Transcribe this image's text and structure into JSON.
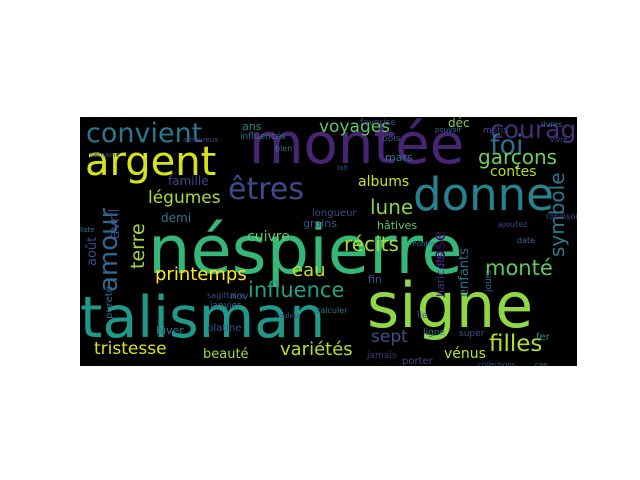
{
  "word_cloud": {
    "background": "#000000",
    "words": [
      {
        "text": "néspierre",
        "color": "#35b778"
      },
      {
        "text": "talisman",
        "color": "#1f9a8a"
      },
      {
        "text": "signe",
        "color": "#8fd744"
      },
      {
        "text": "montée",
        "color": "#482475"
      },
      {
        "text": "argent",
        "color": "#d8e219"
      },
      {
        "text": "donne",
        "color": "#26828e"
      },
      {
        "text": "amour",
        "color": "#31688e"
      },
      {
        "text": "êtres",
        "color": "#3e4a89"
      },
      {
        "text": "convient",
        "color": "#2a788e"
      },
      {
        "text": "courage",
        "color": "#472d7b"
      },
      {
        "text": "foi",
        "color": "#2c718e"
      },
      {
        "text": "garçons",
        "color": "#6ece58"
      },
      {
        "text": "voyages",
        "color": "#5ec962"
      },
      {
        "text": "symbole",
        "color": "#2a788e"
      },
      {
        "text": "légumes",
        "color": "#addc30"
      },
      {
        "text": "lune",
        "color": "#86d549"
      },
      {
        "text": "monté",
        "color": "#5ec962"
      },
      {
        "text": "récits",
        "color": "#addc30"
      },
      {
        "text": "printemps",
        "color": "#fde725"
      },
      {
        "text": "influence",
        "color": "#20a386"
      },
      {
        "text": "eau",
        "color": "#c2df23"
      },
      {
        "text": "filles",
        "color": "#b5de2b"
      },
      {
        "text": "tristesse",
        "color": "#d8e219"
      },
      {
        "text": "variétés",
        "color": "#b5de2b"
      },
      {
        "text": "vénus",
        "color": "#c2df23"
      },
      {
        "text": "sept",
        "color": "#3b528b"
      },
      {
        "text": "terre",
        "color": "#a0da39"
      },
      {
        "text": "albums",
        "color": "#cae11f"
      },
      {
        "text": "contes",
        "color": "#b5de2b"
      },
      {
        "text": "rose",
        "color": "#44015f"
      },
      {
        "text": "beauté",
        "color": "#a0da39"
      },
      {
        "text": "cuivre",
        "color": "#5ec962"
      },
      {
        "text": "famille",
        "color": "#404588"
      },
      {
        "text": "avril",
        "color": "#404688"
      },
      {
        "text": "août",
        "color": "#3e4989"
      },
      {
        "text": "demi",
        "color": "#2a788e"
      },
      {
        "text": "ans",
        "color": "#228c8d"
      },
      {
        "text": "déc",
        "color": "#7ad151"
      },
      {
        "text": "enfants",
        "color": "#2c718e"
      },
      {
        "text": "hâtives",
        "color": "#5ec962"
      },
      {
        "text": "grains",
        "color": "#3b528b"
      },
      {
        "text": "fin",
        "color": "#3b528b"
      },
      {
        "text": "mars",
        "color": "#2a788e"
      },
      {
        "text": "hiver",
        "color": "#2c718e"
      },
      {
        "text": "nov",
        "color": "#31688e"
      },
      {
        "text": "fer",
        "color": "#21918c"
      },
      {
        "text": "haricots",
        "color": "#46337f"
      },
      {
        "text": "platine",
        "color": "#3b528b"
      },
      {
        "text": "pureté",
        "color": "#2c718e"
      },
      {
        "text": "janvier",
        "color": "#31688e"
      },
      {
        "text": "porter",
        "color": "#404688"
      },
      {
        "text": "longueur",
        "color": "#3e4a89"
      },
      {
        "text": "favorise",
        "color": "#3e4a89"
      },
      {
        "text": "influencés",
        "color": "#2c718e"
      },
      {
        "text": "pois",
        "color": "#38598c"
      },
      {
        "text": "métis",
        "color": "#414487"
      },
      {
        "text": "ligne",
        "color": "#2a788e"
      },
      {
        "text": "jamais",
        "color": "#46307e"
      },
      {
        "text": "sagittaire",
        "color": "#3e4a89"
      },
      {
        "text": "jours",
        "color": "#2c718e"
      },
      {
        "text": "île",
        "color": "#3b528b"
      },
      {
        "text": "super",
        "color": "#3b528b"
      },
      {
        "text": "robinson",
        "color": "#3e4989"
      },
      {
        "text": "livres",
        "color": "#31688e"
      },
      {
        "text": "calculer",
        "color": "#2a788e"
      },
      {
        "text": "date",
        "color": "#31688e"
      },
      {
        "text": "semaine",
        "color": "#3b528b"
      },
      {
        "text": "bien",
        "color": "#2c718e"
      },
      {
        "text": "ajoutez",
        "color": "#3e4a89"
      },
      {
        "text": "collections",
        "color": "#3b528b"
      },
      {
        "text": "cap",
        "color": "#2a788e"
      },
      {
        "text": "couleur",
        "color": "#3e4989"
      },
      {
        "text": "lait",
        "color": "#3b528b"
      },
      {
        "text": "montre",
        "color": "#2c718e"
      },
      {
        "text": "vivre",
        "color": "#3b528b"
      },
      {
        "text": "liste",
        "color": "#2a788e"
      },
      {
        "text": "amoureux",
        "color": "#3e4a89"
      },
      {
        "text": "pouvoir",
        "color": "#31688e"
      }
    ]
  }
}
